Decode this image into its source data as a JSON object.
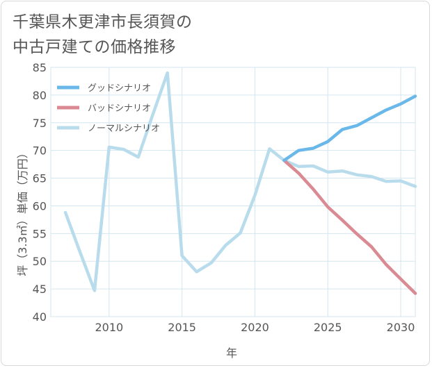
{
  "chart_data": {
    "type": "line",
    "title": [
      "千葉県木更津市長須賀の",
      "中古戸建ての価格推移"
    ],
    "xlabel": "年",
    "ylabel": "坪（3.3㎡）単価（万円）",
    "xlim": [
      2006,
      2031
    ],
    "ylim": [
      40,
      85
    ],
    "xticks": [
      2010,
      2015,
      2020,
      2025,
      2030
    ],
    "yticks": [
      40,
      45,
      50,
      55,
      60,
      65,
      70,
      75,
      80,
      85
    ],
    "grid": true,
    "legend_position": "top-left",
    "series": [
      {
        "name": "グッドシナリオ",
        "color": "#6ab8ea",
        "x": [
          2022,
          2023,
          2024,
          2025,
          2026,
          2027,
          2028,
          2029,
          2030,
          2031
        ],
        "y": [
          68.2,
          70.0,
          70.4,
          71.6,
          73.8,
          74.5,
          75.9,
          77.3,
          78.4,
          79.8
        ]
      },
      {
        "name": "バッドシナリオ",
        "color": "#d98a92",
        "x": [
          2022,
          2023,
          2024,
          2025,
          2026,
          2027,
          2028,
          2029,
          2030,
          2031
        ],
        "y": [
          68.2,
          65.9,
          63.0,
          59.8,
          57.4,
          54.9,
          52.6,
          49.4,
          46.8,
          44.2
        ]
      },
      {
        "name": "ノーマルシナリオ",
        "color": "#b9dcec",
        "x": [
          2007,
          2008,
          2009,
          2010,
          2011,
          2012,
          2013,
          2014,
          2015,
          2016,
          2017,
          2018,
          2019,
          2020,
          2021,
          2022,
          2023,
          2024,
          2025,
          2026,
          2027,
          2028,
          2029,
          2030,
          2031
        ],
        "y": [
          58.8,
          51.7,
          44.7,
          70.6,
          70.2,
          68.8,
          76.5,
          84.0,
          51.0,
          48.1,
          49.7,
          52.9,
          55.1,
          61.9,
          70.3,
          68.2,
          67.1,
          67.2,
          66.1,
          66.3,
          65.6,
          65.3,
          64.4,
          64.5,
          63.5
        ]
      }
    ]
  }
}
